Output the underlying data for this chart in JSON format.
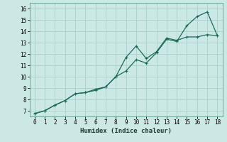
{
  "xlabel": "Humidex (Indice chaleur)",
  "xlim": [
    -0.5,
    18.5
  ],
  "ylim": [
    6.5,
    16.5
  ],
  "yticks": [
    7,
    8,
    9,
    10,
    11,
    12,
    13,
    14,
    15,
    16
  ],
  "xticks": [
    0,
    1,
    2,
    3,
    4,
    5,
    6,
    7,
    8,
    9,
    10,
    11,
    12,
    13,
    14,
    15,
    16,
    17,
    18
  ],
  "bg_color": "#cce8e4",
  "line_color": "#1a6b5a",
  "grid_color": "#aad4cf",
  "line1_x": [
    0,
    1,
    2,
    3,
    4,
    5,
    6,
    7,
    8,
    9,
    10,
    11,
    12,
    13,
    14,
    15,
    16,
    17,
    18
  ],
  "line1_y": [
    6.75,
    7.0,
    7.5,
    7.9,
    8.5,
    8.6,
    8.9,
    9.1,
    10.0,
    10.5,
    11.5,
    11.2,
    12.1,
    13.3,
    13.1,
    14.5,
    15.3,
    15.7,
    13.6
  ],
  "line2_x": [
    0,
    1,
    2,
    3,
    4,
    5,
    6,
    7,
    8,
    9,
    10,
    11,
    12,
    13,
    14,
    15,
    16,
    17,
    18
  ],
  "line2_y": [
    6.75,
    7.0,
    7.5,
    7.9,
    8.5,
    8.6,
    8.8,
    9.1,
    10.0,
    11.7,
    12.7,
    11.6,
    12.2,
    13.4,
    13.2,
    13.5,
    13.5,
    13.7,
    13.6
  ]
}
